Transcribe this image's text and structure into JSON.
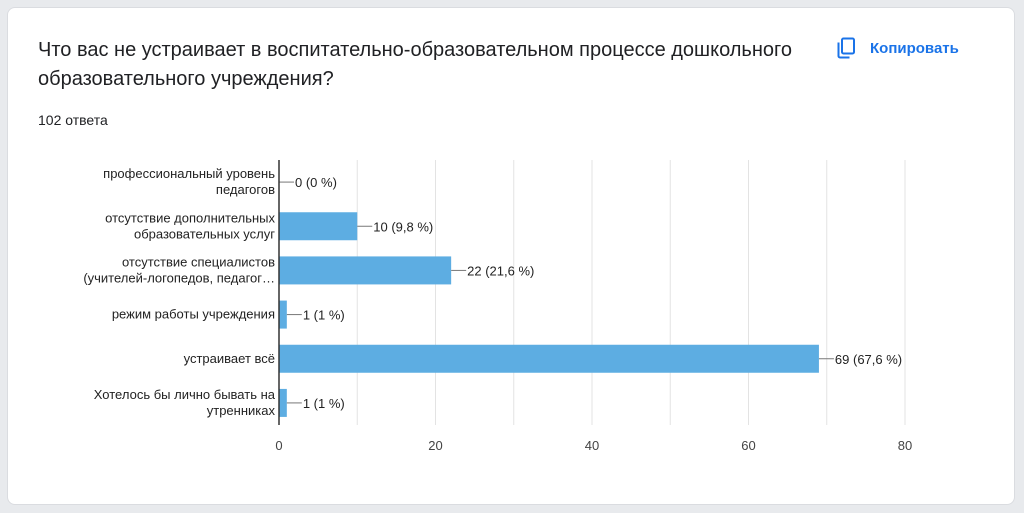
{
  "question": {
    "title": "Что вас не устраивает в воспитательно-образовательном процессе дошкольного образовательного учреждения?",
    "response_count": "102 ответа"
  },
  "copy_button": {
    "label": "Копировать",
    "icon": "copy-icon"
  },
  "colors": {
    "bar": "#5dade2",
    "accent": "#1a73e8"
  },
  "chart_data": {
    "type": "bar",
    "orientation": "horizontal",
    "categories": [
      [
        "профессиональный уровень",
        "педагогов"
      ],
      [
        "отсутствие дополнительных",
        "образовательных услуг"
      ],
      [
        "отсутствие специалистов",
        "(учителей-логопедов, педагог…"
      ],
      [
        "режим работы учреждения"
      ],
      [
        "устраивает всё"
      ],
      [
        "Хотелось бы лично бывать на",
        "утренниках"
      ]
    ],
    "values": [
      0,
      10,
      22,
      1,
      69,
      1
    ],
    "data_labels": [
      "0 (0 %)",
      "10 (9,8 %)",
      "22 (21,6 %)",
      "1 (1 %)",
      "69 (67,6 %)",
      "1 (1 %)"
    ],
    "xlim": [
      0,
      80
    ],
    "xticks": [
      0,
      20,
      40,
      60,
      80
    ],
    "grid": true
  }
}
